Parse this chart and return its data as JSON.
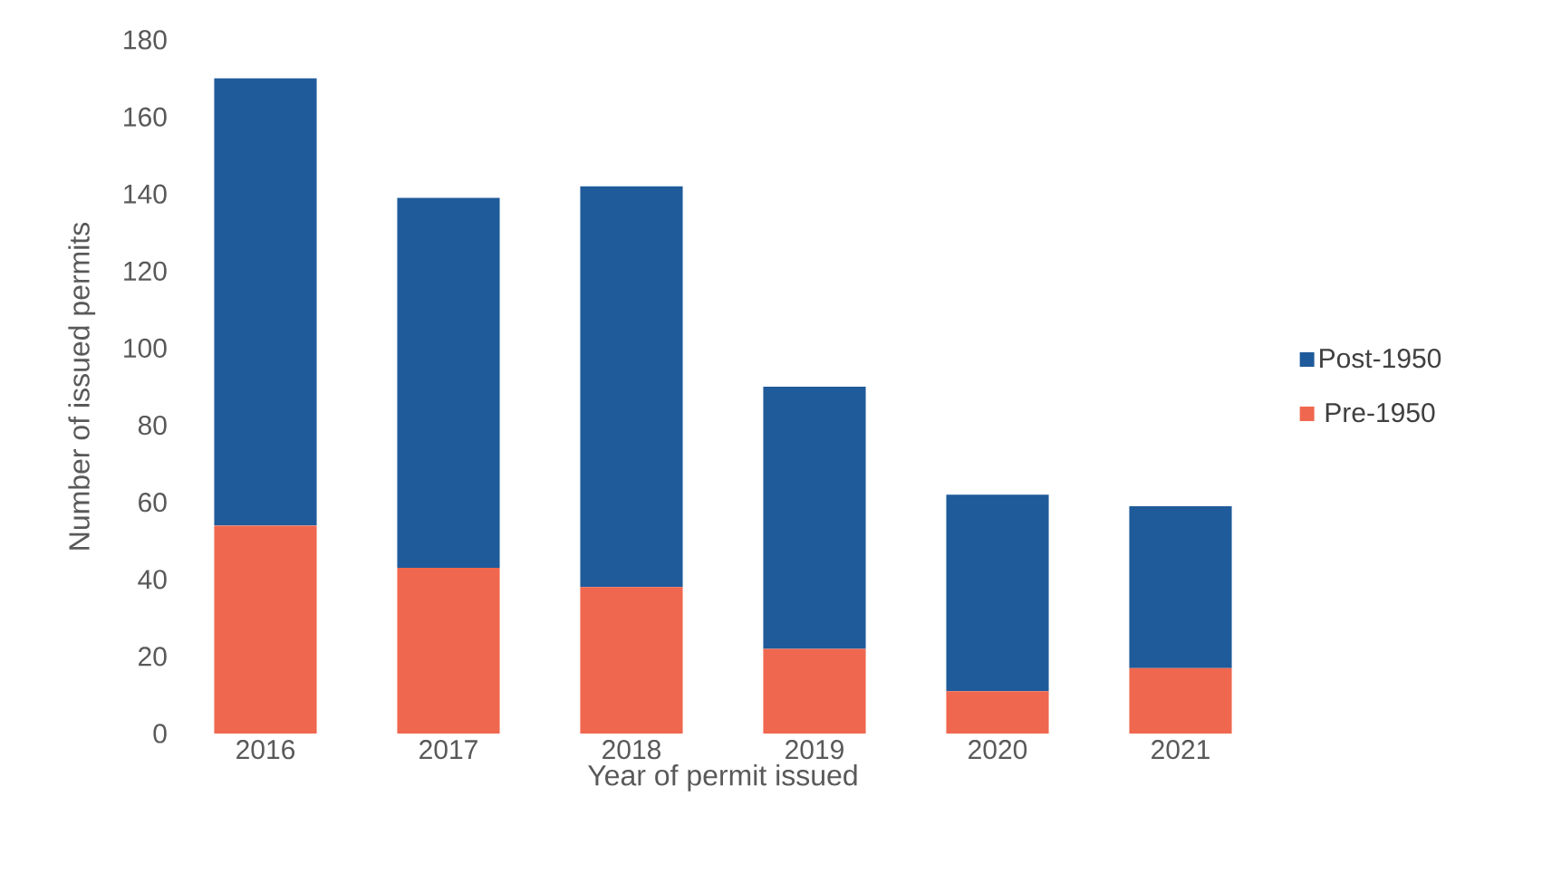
{
  "chart_data": {
    "type": "bar",
    "stacked": true,
    "xlabel": "Year of permit issued",
    "ylabel": "Number of issued permits",
    "categories": [
      "2016",
      "2017",
      "2018",
      "2019",
      "2020",
      "2021"
    ],
    "series": [
      {
        "name": "Pre-1950",
        "color": "#f0674f",
        "values": [
          54,
          43,
          38,
          22,
          11,
          17
        ]
      },
      {
        "name": "Post-1950",
        "color": "#1f5b9a",
        "values": [
          116,
          96,
          104,
          68,
          51,
          42
        ]
      }
    ],
    "ylim": [
      0,
      180
    ],
    "yticks": [
      0,
      20,
      40,
      60,
      80,
      100,
      120,
      140,
      160,
      180
    ],
    "legend": "right",
    "grid": false
  }
}
